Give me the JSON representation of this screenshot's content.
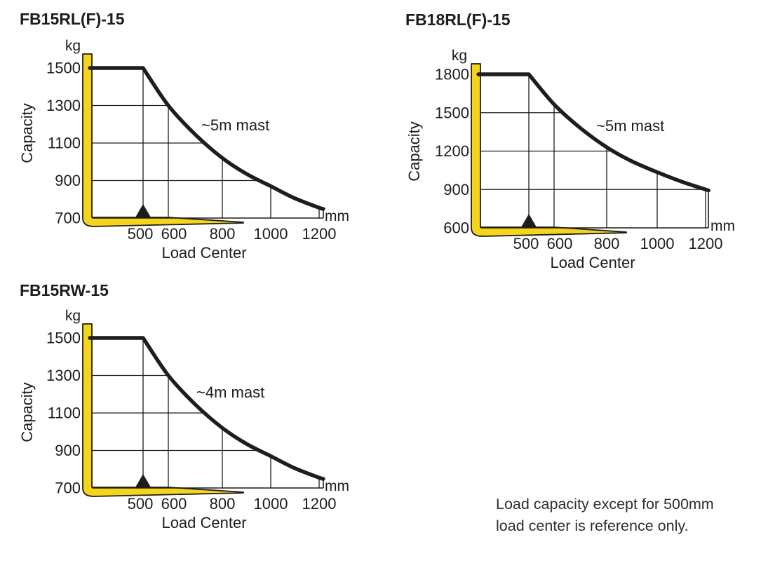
{
  "page": {
    "background": "#ffffff"
  },
  "colors": {
    "fork_yellow": "#f5d41c",
    "line_black": "#1d1d1b",
    "grid_gray": "#3a3a3a"
  },
  "note": {
    "line1": "Load capacity except for 500mm",
    "line2": "load center is reference only."
  },
  "chart_data": [
    {
      "type": "line",
      "title": "FB15RL(F)-15",
      "ylabel": "Capacity",
      "xlabel": "Load Center",
      "y_unit": "kg",
      "x_unit": "mm",
      "mast_label": "~5m mast",
      "y_ticks": [
        1500,
        1300,
        1100,
        900,
        700
      ],
      "x_ticks": [
        500,
        600,
        800,
        1000,
        1200
      ],
      "ylim": [
        700,
        1500
      ],
      "xlim": [
        500,
        1220
      ],
      "grid": true,
      "flat_until_mm": 500,
      "load_center_marker_mm": 500,
      "curve": [
        [
          500,
          1500
        ],
        [
          600,
          1300
        ],
        [
          700,
          1145
        ],
        [
          800,
          1020
        ],
        [
          900,
          935
        ],
        [
          1000,
          870
        ],
        [
          1100,
          805
        ],
        [
          1200,
          755
        ],
        [
          1220,
          749
        ]
      ]
    },
    {
      "type": "line",
      "title": "FB18RL(F)-15",
      "ylabel": "Capacity",
      "xlabel": "Load Center",
      "y_unit": "kg",
      "x_unit": "mm",
      "mast_label": "~5m mast",
      "y_ticks": [
        1800,
        1500,
        1200,
        900,
        600
      ],
      "x_ticks": [
        500,
        600,
        800,
        1000,
        1200
      ],
      "ylim": [
        600,
        1800
      ],
      "xlim": [
        500,
        1220
      ],
      "grid": true,
      "flat_until_mm": 500,
      "load_center_marker_mm": 500,
      "curve": [
        [
          500,
          1800
        ],
        [
          600,
          1565
        ],
        [
          700,
          1380
        ],
        [
          800,
          1230
        ],
        [
          900,
          1120
        ],
        [
          1000,
          1035
        ],
        [
          1100,
          962
        ],
        [
          1200,
          900
        ],
        [
          1220,
          893
        ]
      ]
    },
    {
      "type": "line",
      "title": "FB15RW-15",
      "ylabel": "Capacity",
      "xlabel": "Load Center",
      "y_unit": "kg",
      "x_unit": "mm",
      "mast_label": "~4m mast",
      "y_ticks": [
        1500,
        1300,
        1100,
        900,
        700
      ],
      "x_ticks": [
        500,
        600,
        800,
        1000,
        1200
      ],
      "ylim": [
        700,
        1500
      ],
      "xlim": [
        500,
        1220
      ],
      "grid": true,
      "flat_until_mm": 500,
      "load_center_marker_mm": 500,
      "curve": [
        [
          500,
          1500
        ],
        [
          600,
          1300
        ],
        [
          700,
          1145
        ],
        [
          800,
          1020
        ],
        [
          900,
          935
        ],
        [
          1000,
          870
        ],
        [
          1100,
          805
        ],
        [
          1200,
          755
        ],
        [
          1220,
          749
        ]
      ]
    }
  ]
}
